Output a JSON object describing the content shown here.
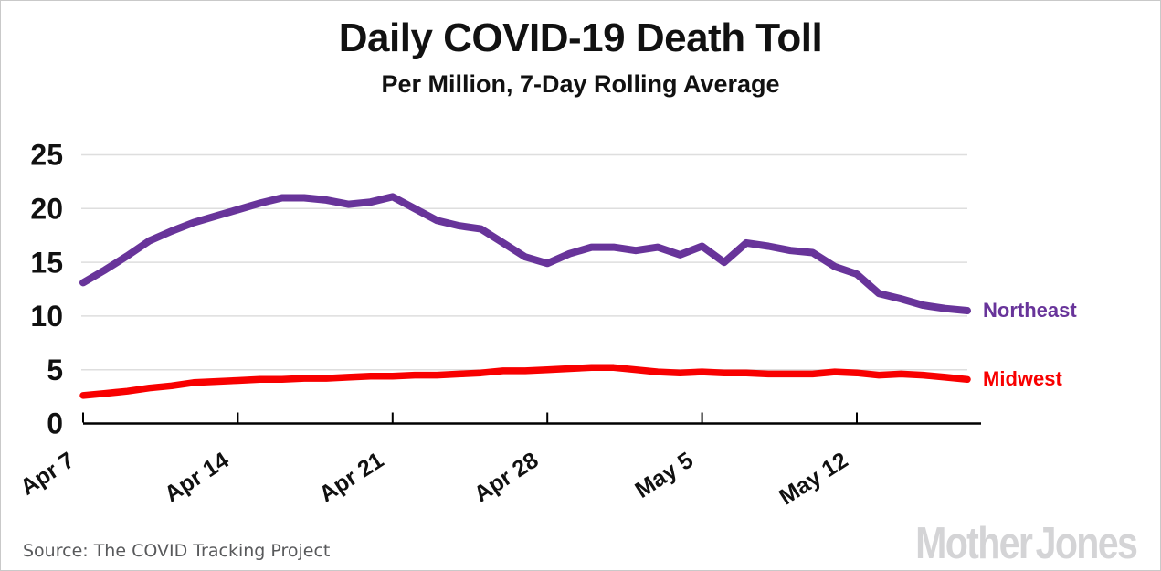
{
  "header": {
    "title": "Daily COVID-19 Death Toll",
    "subtitle": "Per Million, 7-Day Rolling Average"
  },
  "footer": {
    "source": "Source: The COVID Tracking Project",
    "brand": "Mother Jones"
  },
  "chart_data": {
    "type": "line",
    "title": "Daily COVID-19 Death Toll",
    "subtitle": "Per Million, 7-Day Rolling Average",
    "xlabel": "",
    "ylabel": "",
    "ylim": [
      0,
      25
    ],
    "yticks": [
      0,
      5,
      10,
      15,
      20,
      25
    ],
    "grid": "horizontal",
    "grid_color": "#dedede",
    "axis_color": "#000000",
    "legend_position": "right-end-labels",
    "x": [
      "Apr 7",
      "Apr 8",
      "Apr 9",
      "Apr 10",
      "Apr 11",
      "Apr 12",
      "Apr 13",
      "Apr 14",
      "Apr 15",
      "Apr 16",
      "Apr 17",
      "Apr 18",
      "Apr 19",
      "Apr 20",
      "Apr 21",
      "Apr 22",
      "Apr 23",
      "Apr 24",
      "Apr 25",
      "Apr 26",
      "Apr 27",
      "Apr 28",
      "Apr 29",
      "Apr 30",
      "May 1",
      "May 2",
      "May 3",
      "May 4",
      "May 5",
      "May 6",
      "May 7",
      "May 8",
      "May 9",
      "May 10",
      "May 11",
      "May 12",
      "May 13",
      "May 14",
      "May 15",
      "May 16",
      "May 17"
    ],
    "x_tick_indices": [
      0,
      7,
      14,
      21,
      28,
      35
    ],
    "x_tick_labels": [
      "Apr 7",
      "Apr 14",
      "Apr 21",
      "Apr 28",
      "May 5",
      "May 12"
    ],
    "series": [
      {
        "name": "Northeast",
        "color": "#68349a",
        "values": [
          13.1,
          14.3,
          15.6,
          17.0,
          17.9,
          18.7,
          19.3,
          19.9,
          20.5,
          21.0,
          21.0,
          20.8,
          20.4,
          20.6,
          21.1,
          20.0,
          18.9,
          18.4,
          18.1,
          16.8,
          15.5,
          14.9,
          15.8,
          16.4,
          16.4,
          16.1,
          16.4,
          15.7,
          16.5,
          15.0,
          16.8,
          16.5,
          16.1,
          15.9,
          14.6,
          13.9,
          12.1,
          11.6,
          11.0,
          10.7,
          10.5
        ]
      },
      {
        "name": "Midwest",
        "color": "#f80000",
        "values": [
          2.6,
          2.8,
          3.0,
          3.3,
          3.5,
          3.8,
          3.9,
          4.0,
          4.1,
          4.1,
          4.2,
          4.2,
          4.3,
          4.4,
          4.4,
          4.5,
          4.5,
          4.6,
          4.7,
          4.9,
          4.9,
          5.0,
          5.1,
          5.2,
          5.2,
          5.0,
          4.8,
          4.7,
          4.8,
          4.7,
          4.7,
          4.6,
          4.6,
          4.6,
          4.8,
          4.7,
          4.5,
          4.6,
          4.5,
          4.3,
          4.1
        ]
      }
    ]
  }
}
